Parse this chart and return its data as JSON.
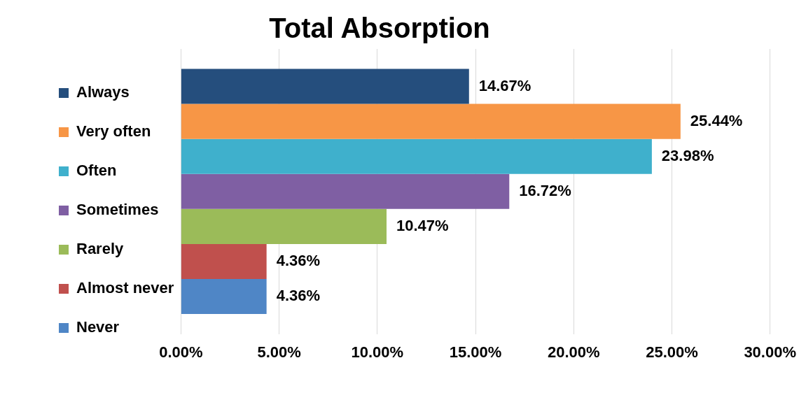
{
  "chart_data": {
    "type": "bar",
    "orientation": "horizontal",
    "title": "Total Absorption",
    "categories": [
      null
    ],
    "series": [
      {
        "name": "Always",
        "color": "#254e7d",
        "values": [
          14.67
        ],
        "value_labels": [
          "14.67%"
        ]
      },
      {
        "name": "Very often",
        "color": "#f79646",
        "values": [
          25.44
        ],
        "value_labels": [
          "25.44%"
        ]
      },
      {
        "name": "Often",
        "color": "#3fb0cc",
        "values": [
          23.98
        ],
        "value_labels": [
          "23.98%"
        ]
      },
      {
        "name": "Sometimes",
        "color": "#7f5fa3",
        "values": [
          16.72
        ],
        "value_labels": [
          "16.72%"
        ]
      },
      {
        "name": "Rarely",
        "color": "#9bbb59",
        "values": [
          10.47
        ],
        "value_labels": [
          "10.47%"
        ]
      },
      {
        "name": "Almost never",
        "color": "#c0504d",
        "values": [
          4.36
        ],
        "value_labels": [
          "4.36%"
        ]
      },
      {
        "name": "Never",
        "color": "#4f86c6",
        "values": [
          4.36
        ],
        "value_labels": [
          "4.36%"
        ]
      }
    ],
    "xlim": [
      0,
      30
    ],
    "xticks": [
      {
        "value": 0,
        "label": "0.00%"
      },
      {
        "value": 5,
        "label": "5.00%"
      },
      {
        "value": 10,
        "label": "10.00%"
      },
      {
        "value": 15,
        "label": "15.00%"
      },
      {
        "value": 20,
        "label": "20.00%"
      },
      {
        "value": 25,
        "label": "25.00%"
      },
      {
        "value": 30,
        "label": "30.00%"
      }
    ],
    "grid": "x",
    "legend": "left",
    "tick_labels": "x"
  }
}
